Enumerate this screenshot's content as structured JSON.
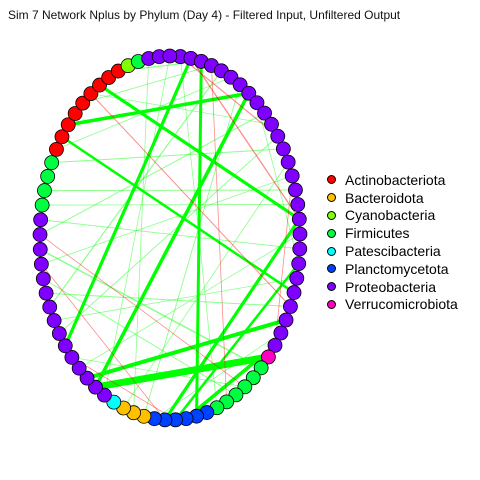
{
  "title": "Sim 7 Network Nplus by Phylum (Day 4) - Filtered Input, Unfiltered Output",
  "legend": [
    {
      "label": "Actinobacteriota",
      "color": "#ff0000"
    },
    {
      "label": "Bacteroidota",
      "color": "#ffc000"
    },
    {
      "label": "Cyanobacteria",
      "color": "#80ff00"
    },
    {
      "label": "Firmicutes",
      "color": "#00ff40"
    },
    {
      "label": "Patescibacteria",
      "color": "#00ffff"
    },
    {
      "label": "Planctomycetota",
      "color": "#0040ff"
    },
    {
      "label": "Proteobacteria",
      "color": "#8000ff"
    },
    {
      "label": "Verrucomicrobiota",
      "color": "#ff00c0"
    }
  ],
  "edge_colors": {
    "positive": "#00ff00",
    "negative": "#ff0000"
  },
  "nodes": [
    "Proteobacteria",
    "Proteobacteria",
    "Proteobacteria",
    "Proteobacteria",
    "Proteobacteria",
    "Proteobacteria",
    "Proteobacteria",
    "Proteobacteria",
    "Proteobacteria",
    "Proteobacteria",
    "Proteobacteria",
    "Proteobacteria",
    "Proteobacteria",
    "Proteobacteria",
    "Proteobacteria",
    "Proteobacteria",
    "Proteobacteria",
    "Proteobacteria",
    "Proteobacteria",
    "Proteobacteria",
    "Proteobacteria",
    "Proteobacteria",
    "Proteobacteria",
    "Proteobacteria",
    "Proteobacteria",
    "Proteobacteria",
    "Proteobacteria",
    "Verrucomicrobiota",
    "Firmicutes",
    "Firmicutes",
    "Firmicutes",
    "Firmicutes",
    "Firmicutes",
    "Firmicutes",
    "Planctomycetota",
    "Planctomycetota",
    "Planctomycetota",
    "Planctomycetota",
    "Planctomycetota",
    "Planctomycetota",
    "Bacteroidota",
    "Bacteroidota",
    "Bacteroidota",
    "Patescibacteria",
    "Proteobacteria",
    "Proteobacteria",
    "Proteobacteria",
    "Proteobacteria",
    "Proteobacteria",
    "Proteobacteria",
    "Proteobacteria",
    "Proteobacteria",
    "Proteobacteria",
    "Proteobacteria",
    "Proteobacteria",
    "Proteobacteria",
    "Proteobacteria",
    "Proteobacteria",
    "Proteobacteria",
    "Firmicutes",
    "Firmicutes",
    "Firmicutes",
    "Firmicutes",
    "Actinobacteriota",
    "Actinobacteriota",
    "Actinobacteriota",
    "Actinobacteriota",
    "Actinobacteriota",
    "Actinobacteriota",
    "Actinobacteriota",
    "Actinobacteriota",
    "Actinobacteriota",
    "Cyanobacteria",
    "Firmicutes",
    "Proteobacteria",
    "Proteobacteria",
    "Proteobacteria"
  ],
  "edges": [
    {
      "from": 7,
      "to": 65,
      "sign": "positive",
      "weight": 3.5
    },
    {
      "from": 7,
      "to": 45,
      "sign": "positive",
      "weight": 3.5
    },
    {
      "from": 1,
      "to": 49,
      "sign": "positive",
      "weight": 3.2
    },
    {
      "from": 17,
      "to": 69,
      "sign": "positive",
      "weight": 3.2
    },
    {
      "from": 24,
      "to": 46,
      "sign": "positive",
      "weight": 4
    },
    {
      "from": 27,
      "to": 45,
      "sign": "positive",
      "weight": 7
    },
    {
      "from": 26,
      "to": 36,
      "sign": "positive",
      "weight": 3.5
    },
    {
      "from": 17,
      "to": 38,
      "sign": "positive",
      "weight": 3.2
    },
    {
      "from": 2,
      "to": 35,
      "sign": "positive",
      "weight": 3
    },
    {
      "from": 20,
      "to": 37,
      "sign": "positive",
      "weight": 2.5
    },
    {
      "from": 22,
      "to": 64,
      "sign": "positive",
      "weight": 2.5
    },
    {
      "from": 28,
      "to": 56,
      "sign": "positive",
      "weight": 1.5
    },
    {
      "from": 2,
      "to": 71,
      "sign": "positive",
      "weight": 1.3
    },
    {
      "from": 4,
      "to": 52,
      "sign": "positive",
      "weight": 1.2
    },
    {
      "from": 9,
      "to": 57,
      "sign": "positive",
      "weight": 1
    },
    {
      "from": 12,
      "to": 62,
      "sign": "positive",
      "weight": 1
    },
    {
      "from": 15,
      "to": 60,
      "sign": "positive",
      "weight": 1
    },
    {
      "from": 23,
      "to": 53,
      "sign": "positive",
      "weight": 1
    },
    {
      "from": 19,
      "to": 58,
      "sign": "positive",
      "weight": 0.9
    },
    {
      "from": 11,
      "to": 50,
      "sign": "positive",
      "weight": 0.9
    },
    {
      "from": 6,
      "to": 40,
      "sign": "positive",
      "weight": 0.9
    },
    {
      "from": 31,
      "to": 54,
      "sign": "positive",
      "weight": 0.9
    },
    {
      "from": 3,
      "to": 67,
      "sign": "positive",
      "weight": 0.9
    },
    {
      "from": 13,
      "to": 42,
      "sign": "positive",
      "weight": 0.8
    },
    {
      "from": 25,
      "to": 39,
      "sign": "positive",
      "weight": 0.8
    },
    {
      "from": 18,
      "to": 47,
      "sign": "positive",
      "weight": 0.8
    },
    {
      "from": 30,
      "to": 48,
      "sign": "positive",
      "weight": 0.8
    },
    {
      "from": 14,
      "to": 55,
      "sign": "positive",
      "weight": 0.8
    },
    {
      "from": 10,
      "to": 68,
      "sign": "positive",
      "weight": 0.8
    },
    {
      "from": 0,
      "to": 33,
      "sign": "positive",
      "weight": 0.8
    },
    {
      "from": 76,
      "to": 44,
      "sign": "positive",
      "weight": 0.8
    },
    {
      "from": 8,
      "to": 20,
      "sign": "positive",
      "weight": 0.8
    },
    {
      "from": 5,
      "to": 63,
      "sign": "positive",
      "weight": 0.8
    },
    {
      "from": 21,
      "to": 51,
      "sign": "positive",
      "weight": 0.8
    },
    {
      "from": 74,
      "to": 41,
      "sign": "positive",
      "weight": 0.8
    },
    {
      "from": 16,
      "to": 59,
      "sign": "positive",
      "weight": 0.8
    },
    {
      "from": 1,
      "to": 17,
      "sign": "negative",
      "weight": 1.3
    },
    {
      "from": 0,
      "to": 11,
      "sign": "negative",
      "weight": 1.2
    },
    {
      "from": 68,
      "to": 23,
      "sign": "negative",
      "weight": 1
    },
    {
      "from": 3,
      "to": 32,
      "sign": "negative",
      "weight": 0.8
    },
    {
      "from": 57,
      "to": 30,
      "sign": "negative",
      "weight": 0.8
    },
    {
      "from": 55,
      "to": 38,
      "sign": "negative",
      "weight": 0.8
    },
    {
      "from": 48,
      "to": 37,
      "sign": "negative",
      "weight": 0.8
    },
    {
      "from": 14,
      "to": 26,
      "sign": "negative",
      "weight": 0.8
    }
  ]
}
